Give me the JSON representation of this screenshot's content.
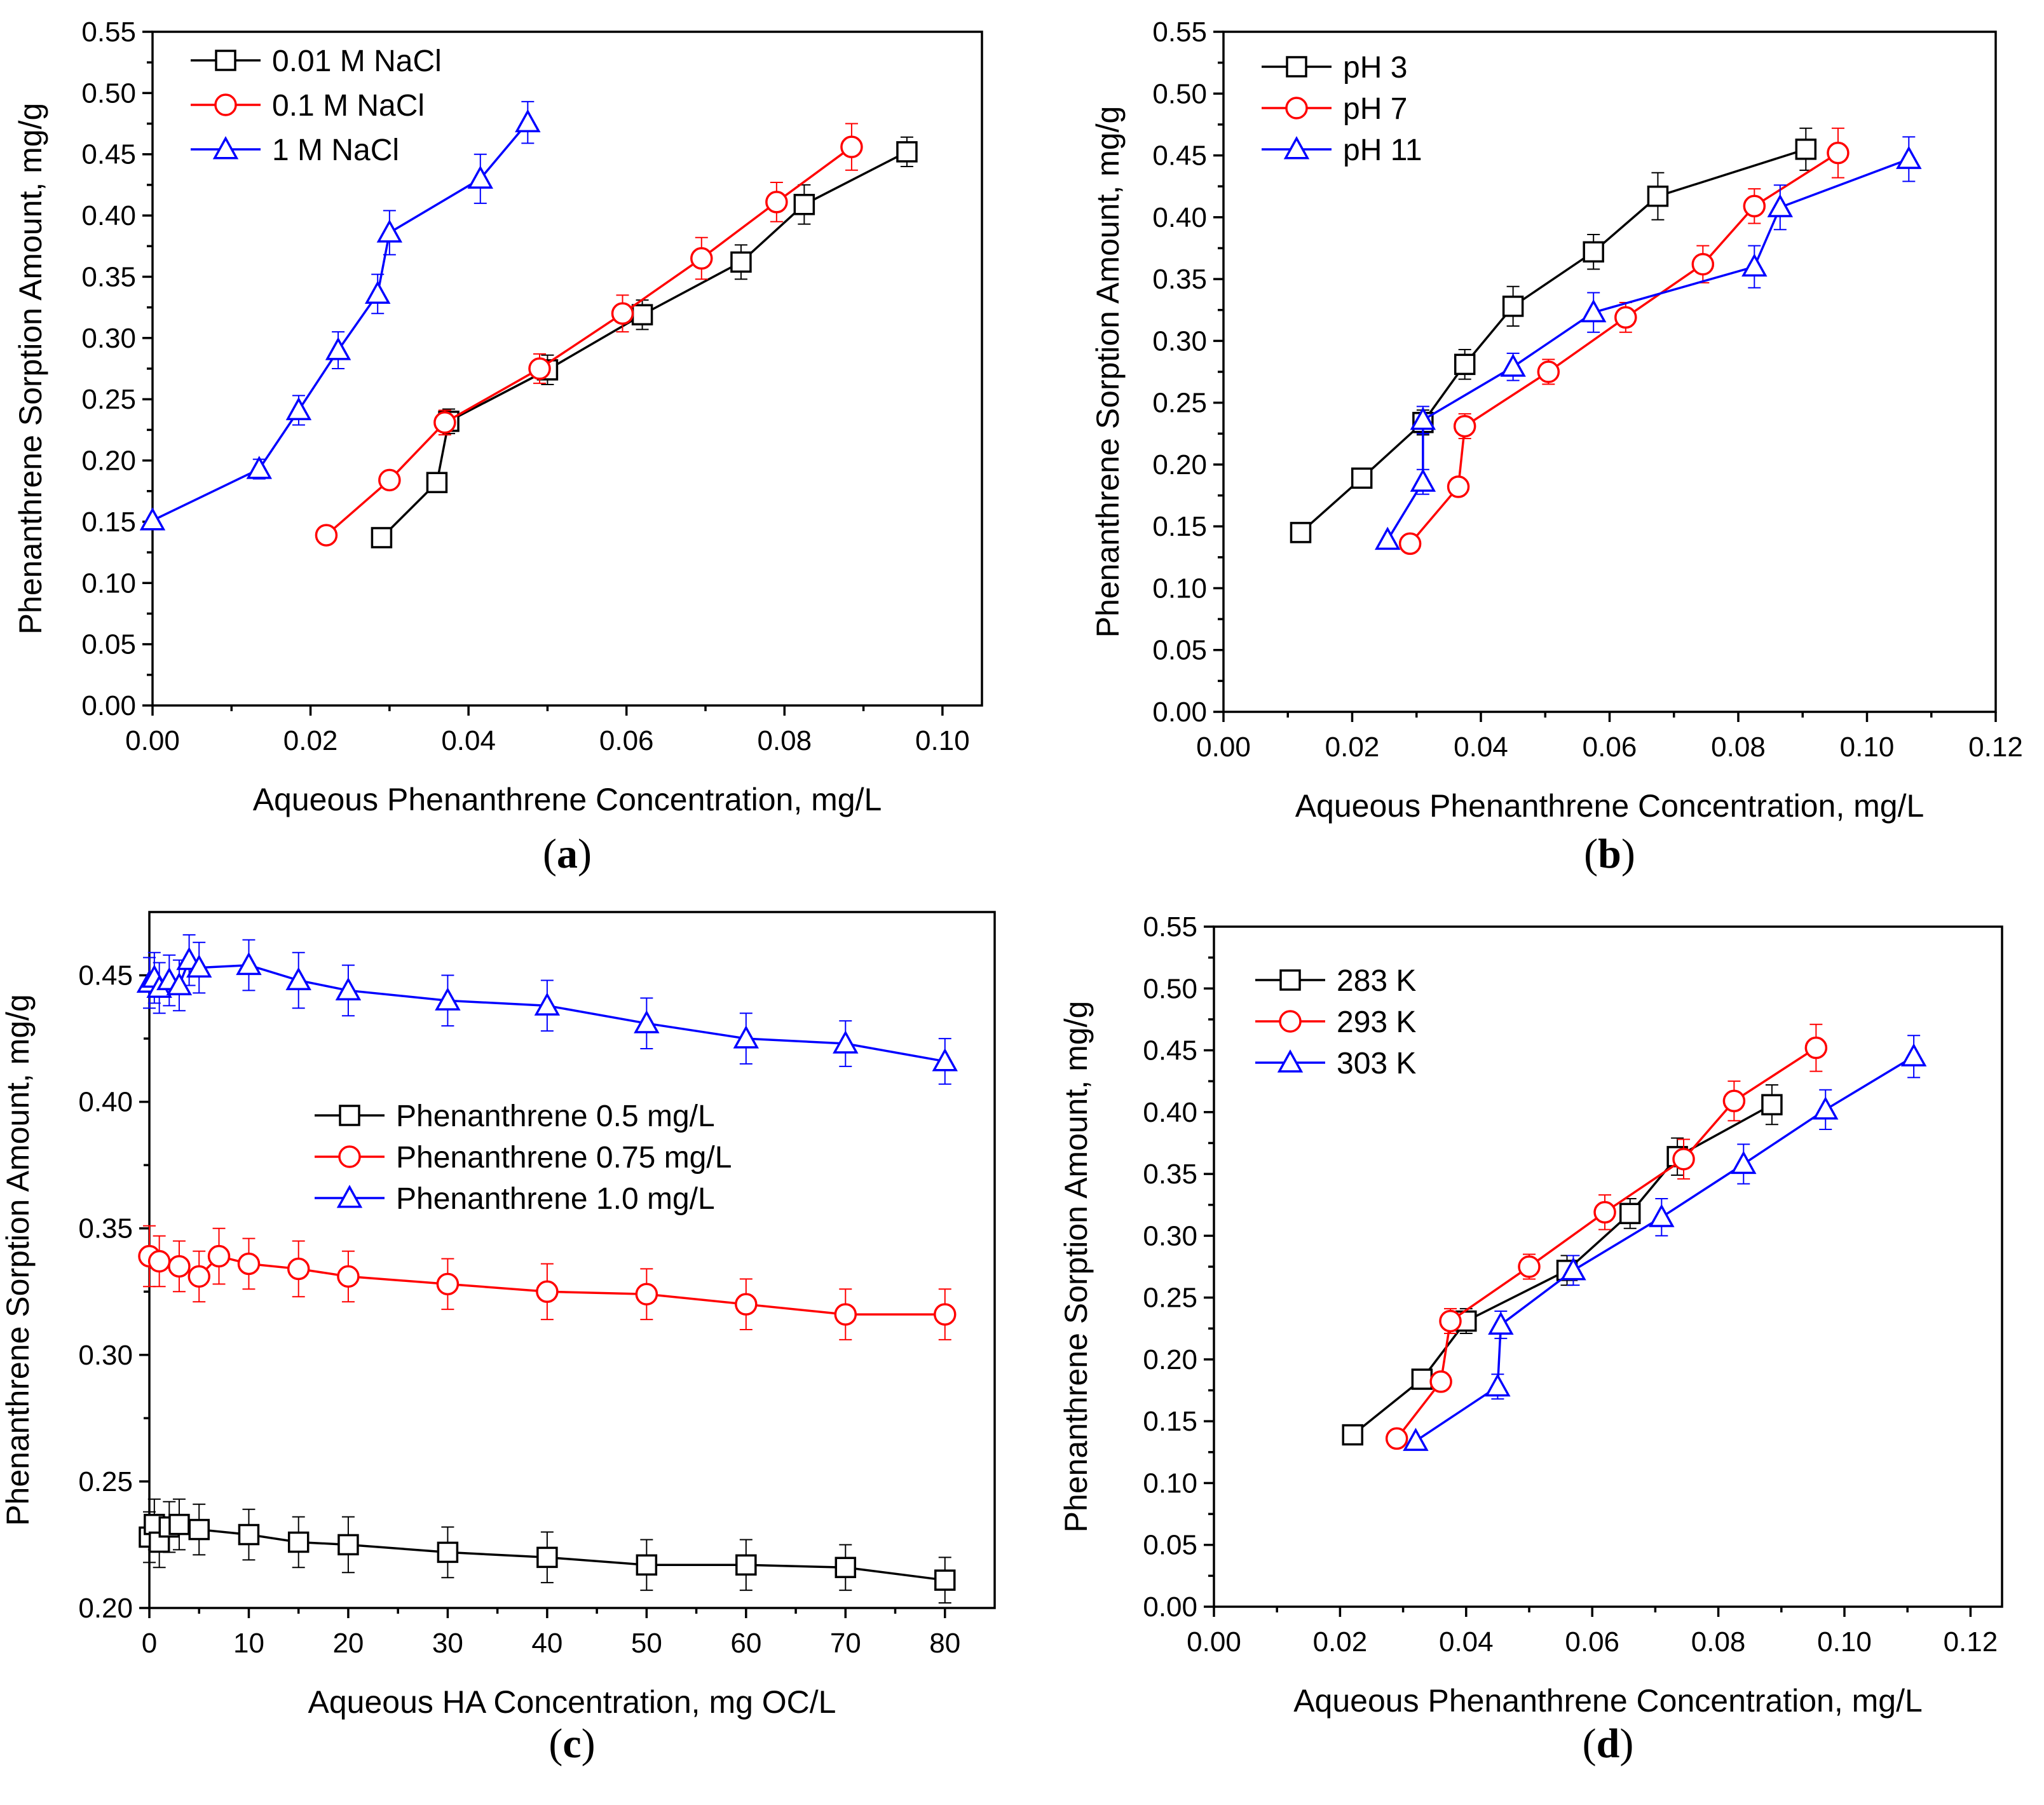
{
  "chart_data": [
    {
      "panel": "a",
      "type": "line",
      "title": "",
      "panel_label": {
        "open": "(",
        "letter": "a",
        "close": ")"
      },
      "xlabel": "Aqueous Phenanthrene Concentration, mg/L",
      "ylabel": "Phenanthrene Sorption Amount, mg/g",
      "xlim": [
        0,
        0.105
      ],
      "ylim": [
        0,
        0.55
      ],
      "xticks": [
        0,
        0.02,
        0.04,
        0.06,
        0.08,
        0.1
      ],
      "xtick_labels": [
        "0.00",
        "0.02",
        "0.04",
        "0.06",
        "0.08",
        "0.10"
      ],
      "yticks": [
        0,
        0.05,
        0.1,
        0.15,
        0.2,
        0.25,
        0.3,
        0.35,
        0.4,
        0.45,
        0.5,
        0.55
      ],
      "ytick_labels": [
        "0.00",
        "0.05",
        "0.10",
        "0.15",
        "0.20",
        "0.25",
        "0.30",
        "0.35",
        "0.40",
        "0.45",
        "0.50",
        "0.55"
      ],
      "legend_position": "top-left",
      "series": [
        {
          "name": "0.01 M NaCl",
          "marker": "square",
          "color": "#000000",
          "x": [
            0.029,
            0.036,
            0.0375,
            0.05,
            0.062,
            0.0745,
            0.0825,
            0.0955
          ],
          "y": [
            0.137,
            0.182,
            0.232,
            0.274,
            0.319,
            0.362,
            0.409,
            0.452
          ],
          "err": [
            0,
            0,
            0.01,
            0.012,
            0.012,
            0.014,
            0.016,
            0.012
          ]
        },
        {
          "name": "0.1 M NaCl",
          "marker": "circle",
          "color": "#ff0000",
          "x": [
            0.022,
            0.03,
            0.037,
            0.049,
            0.0595,
            0.0695,
            0.079,
            0.0885
          ],
          "y": [
            0.139,
            0.184,
            0.231,
            0.275,
            0.32,
            0.365,
            0.411,
            0.456
          ],
          "err": [
            0,
            0,
            0.01,
            0.012,
            0.015,
            0.017,
            0.016,
            0.019
          ]
        },
        {
          "name": "1 M NaCl",
          "marker": "triangle",
          "color": "#0000ff",
          "x": [
            0.0,
            0.0135,
            0.0185,
            0.0235,
            0.0285,
            0.03,
            0.0415,
            0.0475
          ],
          "y": [
            0.151,
            0.193,
            0.241,
            0.29,
            0.336,
            0.386,
            0.43,
            0.476
          ],
          "err": [
            0,
            0.008,
            0.012,
            0.015,
            0.016,
            0.018,
            0.02,
            0.017
          ]
        }
      ]
    },
    {
      "panel": "b",
      "type": "line",
      "title": "",
      "panel_label": {
        "open": "(",
        "letter": "b",
        "close": ")"
      },
      "xlabel": "Aqueous Phenanthrene Concentration, mg/L",
      "ylabel": "Phenanthrene Sorption Amount, mg/g",
      "xlim": [
        0,
        0.12
      ],
      "ylim": [
        0,
        0.55
      ],
      "xticks": [
        0,
        0.02,
        0.04,
        0.06,
        0.08,
        0.1,
        0.12
      ],
      "xtick_labels": [
        "0.00",
        "0.02",
        "0.04",
        "0.06",
        "0.08",
        "0.10",
        "0.12"
      ],
      "yticks": [
        0,
        0.05,
        0.1,
        0.15,
        0.2,
        0.25,
        0.3,
        0.35,
        0.4,
        0.45,
        0.5,
        0.55
      ],
      "ytick_labels": [
        "0.00",
        "0.05",
        "0.10",
        "0.15",
        "0.20",
        "0.25",
        "0.30",
        "0.35",
        "0.40",
        "0.45",
        "0.50",
        "0.55"
      ],
      "legend_position": "top-left",
      "series": [
        {
          "name": "pH 3",
          "marker": "square",
          "color": "#000000",
          "x": [
            0.012,
            0.0215,
            0.031,
            0.0375,
            0.045,
            0.0575,
            0.0675,
            0.0905
          ],
          "y": [
            0.145,
            0.189,
            0.234,
            0.281,
            0.328,
            0.372,
            0.417,
            0.455
          ],
          "err": [
            0,
            0.007,
            0.01,
            0.012,
            0.016,
            0.014,
            0.019,
            0.017
          ]
        },
        {
          "name": "pH 7",
          "marker": "circle",
          "color": "#ff0000",
          "x": [
            0.029,
            0.0365,
            0.0375,
            0.0505,
            0.0625,
            0.0745,
            0.0825,
            0.0955
          ],
          "y": [
            0.136,
            0.182,
            0.231,
            0.275,
            0.319,
            0.362,
            0.409,
            0.452
          ],
          "err": [
            0,
            0,
            0.01,
            0.01,
            0.012,
            0.015,
            0.014,
            0.02
          ]
        },
        {
          "name": "pH 11",
          "marker": "triangle",
          "color": "#0000ff",
          "x": [
            0.0255,
            0.031,
            0.031,
            0.045,
            0.0575,
            0.0825,
            0.0865,
            0.1065
          ],
          "y": [
            0.139,
            0.186,
            0.236,
            0.279,
            0.323,
            0.36,
            0.408,
            0.447
          ],
          "err": [
            0,
            0.01,
            0.011,
            0.011,
            0.016,
            0.017,
            0.018,
            0.018
          ]
        }
      ]
    },
    {
      "panel": "c",
      "type": "line",
      "title": "",
      "panel_label": {
        "open": "(",
        "letter": "c",
        "close": ")"
      },
      "xlabel": "Aqueous HA Concentration, mg OC/L",
      "ylabel": "Phenanthrene Sorption Amount, mg/g",
      "xlim": [
        0,
        85
      ],
      "ylim": [
        0.2,
        0.475
      ],
      "xticks": [
        0,
        10,
        20,
        30,
        40,
        50,
        60,
        70,
        80
      ],
      "xtick_labels": [
        "0",
        "10",
        "20",
        "30",
        "40",
        "50",
        "60",
        "70",
        "80"
      ],
      "yticks": [
        0.2,
        0.25,
        0.3,
        0.35,
        0.4,
        0.45
      ],
      "ytick_labels": [
        "0.20",
        "0.25",
        "0.30",
        "0.35",
        "0.40",
        "0.45"
      ],
      "legend_position": "center-right",
      "series": [
        {
          "name": "Phenanthrene 0.5 mg/L",
          "marker": "square",
          "color": "#000000",
          "x": [
            0,
            0.5,
            1,
            2,
            3,
            5,
            10,
            15,
            20,
            30,
            40,
            50,
            60,
            70,
            80
          ],
          "y": [
            0.228,
            0.233,
            0.226,
            0.232,
            0.233,
            0.231,
            0.229,
            0.226,
            0.225,
            0.222,
            0.22,
            0.217,
            0.217,
            0.216,
            0.211
          ],
          "err": [
            0.01,
            0.01,
            0.01,
            0.01,
            0.01,
            0.01,
            0.01,
            0.01,
            0.011,
            0.01,
            0.01,
            0.01,
            0.01,
            0.009,
            0.009
          ]
        },
        {
          "name": "Phenanthrene 0.75 mg/L",
          "marker": "circle",
          "color": "#ff0000",
          "x": [
            0,
            1,
            3,
            5,
            7,
            10,
            15,
            20,
            30,
            40,
            50,
            60,
            70,
            80
          ],
          "y": [
            0.339,
            0.337,
            0.335,
            0.331,
            0.339,
            0.336,
            0.334,
            0.331,
            0.328,
            0.325,
            0.324,
            0.32,
            0.316,
            0.316
          ],
          "err": [
            0.012,
            0.01,
            0.01,
            0.01,
            0.011,
            0.01,
            0.011,
            0.01,
            0.01,
            0.011,
            0.01,
            0.01,
            0.01,
            0.01
          ]
        },
        {
          "name": "Phenanthrene 1.0 mg/L",
          "marker": "triangle",
          "color": "#0000ff",
          "x": [
            0,
            0.5,
            1,
            2,
            3,
            4,
            5,
            10,
            15,
            20,
            30,
            40,
            50,
            60,
            70,
            80
          ],
          "y": [
            0.447,
            0.449,
            0.445,
            0.448,
            0.446,
            0.456,
            0.453,
            0.454,
            0.448,
            0.444,
            0.44,
            0.438,
            0.431,
            0.425,
            0.423,
            0.416
          ],
          "err": [
            0.01,
            0.01,
            0.01,
            0.01,
            0.01,
            0.01,
            0.01,
            0.01,
            0.011,
            0.01,
            0.01,
            0.01,
            0.01,
            0.01,
            0.009,
            0.009
          ]
        }
      ]
    },
    {
      "panel": "d",
      "type": "line",
      "title": "",
      "panel_label": {
        "open": "(",
        "letter": "d",
        "close": ")"
      },
      "xlabel": "Aqueous Phenanthrene Concentration, mg/L",
      "ylabel": "Phenanthrene Sorption Amount, mg/g",
      "xlim": [
        0,
        0.125
      ],
      "ylim": [
        0,
        0.55
      ],
      "xticks": [
        0,
        0.02,
        0.04,
        0.06,
        0.08,
        0.1,
        0.12
      ],
      "xtick_labels": [
        "0.00",
        "0.02",
        "0.04",
        "0.06",
        "0.08",
        "0.10",
        "0.12"
      ],
      "yticks": [
        0,
        0.05,
        0.1,
        0.15,
        0.2,
        0.25,
        0.3,
        0.35,
        0.4,
        0.45,
        0.5,
        0.55
      ],
      "ytick_labels": [
        "0.00",
        "0.05",
        "0.10",
        "0.15",
        "0.20",
        "0.25",
        "0.30",
        "0.35",
        "0.40",
        "0.45",
        "0.50",
        "0.55"
      ],
      "legend_position": "top-left",
      "series": [
        {
          "name": "283 K",
          "marker": "square",
          "color": "#000000",
          "x": [
            0.022,
            0.033,
            0.04,
            0.056,
            0.066,
            0.0735,
            0.0885
          ],
          "y": [
            0.139,
            0.184,
            0.231,
            0.272,
            0.318,
            0.364,
            0.406
          ],
          "err": [
            0,
            0,
            0.01,
            0.012,
            0.012,
            0.015,
            0.016
          ]
        },
        {
          "name": "293 K",
          "marker": "circle",
          "color": "#ff0000",
          "x": [
            0.029,
            0.036,
            0.0375,
            0.05,
            0.062,
            0.0745,
            0.0825,
            0.0955
          ],
          "y": [
            0.136,
            0.182,
            0.231,
            0.275,
            0.319,
            0.362,
            0.409,
            0.452
          ],
          "err": [
            0,
            0,
            0.01,
            0.01,
            0.014,
            0.016,
            0.016,
            0.019
          ]
        },
        {
          "name": "303 K",
          "marker": "triangle",
          "color": "#0000ff",
          "x": [
            0.032,
            0.045,
            0.0455,
            0.057,
            0.071,
            0.084,
            0.097,
            0.111
          ],
          "y": [
            0.134,
            0.178,
            0.228,
            0.272,
            0.315,
            0.358,
            0.402,
            0.445
          ],
          "err": [
            0,
            0.01,
            0.011,
            0.012,
            0.015,
            0.016,
            0.016,
            0.017
          ]
        }
      ]
    }
  ]
}
